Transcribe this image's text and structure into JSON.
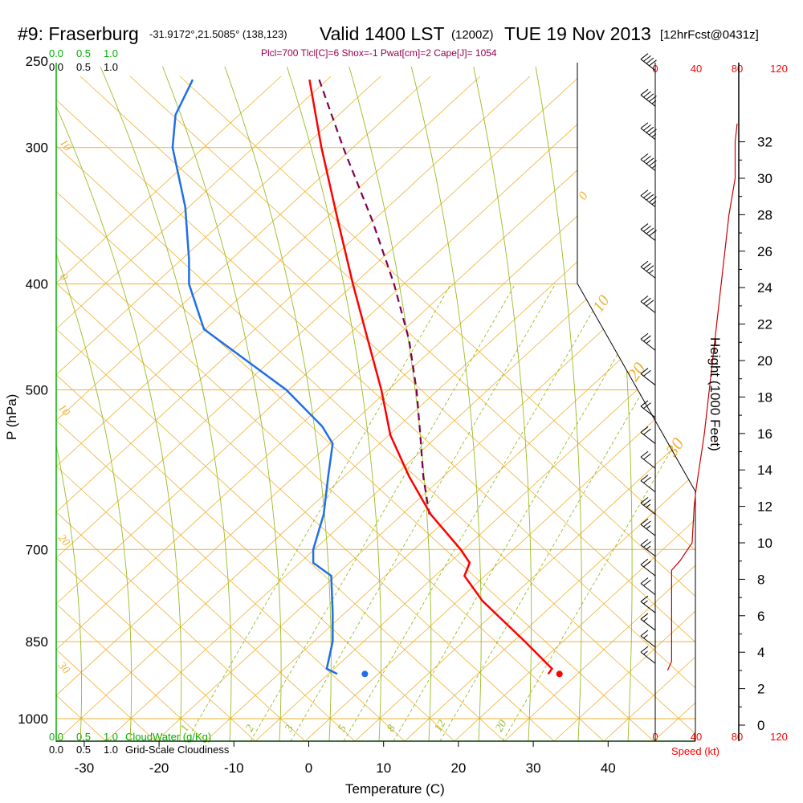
{
  "header": {
    "station": "#9: Fraserburg",
    "coords": "-31.9172°,21.5085° (138,123)",
    "valid": "Valid 1400 LST",
    "utc": "(1200Z)",
    "date": "TUE 19 Nov 2013",
    "forecast": "[12hrFcst@0431z]"
  },
  "indices_text": "Plcl=700 Tlcl[C]=6 Shox=-1 Pwat[cm]=2 Cape[J]= 1054",
  "cloud": {
    "water_ticks": [
      "0.0",
      "0.5",
      "1.0"
    ],
    "cover_ticks": [
      "0.0",
      "0.5",
      "1.0"
    ],
    "water_label": "CloudWater (g/Kg)",
    "cover_label": "Grid-Scale Cloudiness"
  },
  "speed": {
    "ticks": [
      "0",
      "40",
      "80",
      "120"
    ],
    "label": "Speed (kt)"
  },
  "colors": {
    "isobar": "#f0b030",
    "dry_adiabat": "#f0b030",
    "moist_adiabat": "#99bb22",
    "mixing_ratio": "#99bb22",
    "temperature": "#ff0000",
    "dewpoint": "#1e6fe8",
    "parcel": "#800050",
    "wind_speed": "#cc0000",
    "cloud_water": "#00b000",
    "barb": "#000000"
  },
  "chart_data": {
    "type": "skew-t log-p sounding",
    "xlabel": "Temperature (C)",
    "ylabel": "P (hPa)",
    "y2label": "Height (1000 Feet)",
    "temperature_ticks": [
      -30,
      -20,
      -10,
      0,
      10,
      20,
      30,
      40
    ],
    "pressure_ticks": [
      250,
      300,
      400,
      500,
      700,
      850,
      1000
    ],
    "height_ticks_kft": [
      0,
      2,
      4,
      6,
      8,
      10,
      12,
      14,
      16,
      18,
      20,
      22,
      24,
      26,
      28,
      30,
      32
    ],
    "pressure_range_hpa": [
      1000,
      250
    ],
    "temperature_range_c": [
      -35,
      40
    ],
    "dry_adiabat_labels": [
      "-30",
      "-20",
      "-10",
      "0",
      "10",
      "20",
      "30"
    ],
    "moist_adiabat_labels": [
      "0",
      "10",
      "20",
      "30"
    ],
    "mixing_ratio_labels": [
      "1",
      "2",
      "3",
      "5",
      "8",
      "12",
      "20"
    ],
    "temperature_profile": [
      {
        "p": 260,
        "t": 0.1
      },
      {
        "p": 300,
        "t": 1.7
      },
      {
        "p": 350,
        "t": 3.9
      },
      {
        "p": 400,
        "t": 5.9
      },
      {
        "p": 450,
        "t": 7.9
      },
      {
        "p": 500,
        "t": 9.7
      },
      {
        "p": 550,
        "t": 10.9
      },
      {
        "p": 600,
        "t": 13.4
      },
      {
        "p": 650,
        "t": 16.3
      },
      {
        "p": 700,
        "t": 20.3
      },
      {
        "p": 720,
        "t": 21.5
      },
      {
        "p": 740,
        "t": 20.8
      },
      {
        "p": 780,
        "t": 23.2
      },
      {
        "p": 850,
        "t": 28.9
      },
      {
        "p": 900,
        "t": 32.5
      },
      {
        "p": 910,
        "t": 32.0
      }
    ],
    "dewpoint_profile": [
      {
        "p": 260,
        "t": -15.5
      },
      {
        "p": 280,
        "t": -17.8
      },
      {
        "p": 300,
        "t": -18.2
      },
      {
        "p": 340,
        "t": -16.5
      },
      {
        "p": 380,
        "t": -16.0
      },
      {
        "p": 400,
        "t": -16.0
      },
      {
        "p": 440,
        "t": -14.0
      },
      {
        "p": 500,
        "t": -3.0
      },
      {
        "p": 540,
        "t": 1.8
      },
      {
        "p": 560,
        "t": 3.2
      },
      {
        "p": 600,
        "t": 2.6
      },
      {
        "p": 650,
        "t": 2.0
      },
      {
        "p": 700,
        "t": 0.6
      },
      {
        "p": 720,
        "t": 0.6
      },
      {
        "p": 740,
        "t": 3.0
      },
      {
        "p": 800,
        "t": 3.2
      },
      {
        "p": 850,
        "t": 3.2
      },
      {
        "p": 900,
        "t": 2.4
      },
      {
        "p": 910,
        "t": 3.8
      }
    ],
    "parcel_profile": [
      {
        "p": 260,
        "t": 1.4
      },
      {
        "p": 300,
        "t": 4.6
      },
      {
        "p": 350,
        "t": 8.5
      },
      {
        "p": 400,
        "t": 11.4
      },
      {
        "p": 450,
        "t": 13.4
      },
      {
        "p": 500,
        "t": 14.4
      },
      {
        "p": 550,
        "t": 14.9
      },
      {
        "p": 600,
        "t": 15.3
      },
      {
        "p": 650,
        "t": 16.1
      }
    ],
    "surface_temperature": {
      "p": 910,
      "t": 33.5
    },
    "surface_dewpoint": {
      "p": 910,
      "t": 7.5
    },
    "wind_speed_profile_kt": [
      {
        "h": 3.0,
        "v": 12
      },
      {
        "h": 3.5,
        "v": 16
      },
      {
        "h": 5.0,
        "v": 16
      },
      {
        "h": 7.0,
        "v": 16
      },
      {
        "h": 8.5,
        "v": 16
      },
      {
        "h": 9.0,
        "v": 24
      },
      {
        "h": 10.0,
        "v": 36
      },
      {
        "h": 12.0,
        "v": 38
      },
      {
        "h": 13.0,
        "v": 40
      },
      {
        "h": 16.0,
        "v": 48
      },
      {
        "h": 20.0,
        "v": 56
      },
      {
        "h": 24.0,
        "v": 64
      },
      {
        "h": 28.0,
        "v": 72
      },
      {
        "h": 30.0,
        "v": 78
      },
      {
        "h": 32.0,
        "v": 78
      },
      {
        "h": 33.0,
        "v": 80
      }
    ],
    "wind_barbs": [
      {
        "p": 255,
        "kt": 40
      },
      {
        "p": 275,
        "kt": 45
      },
      {
        "p": 295,
        "kt": 45
      },
      {
        "p": 315,
        "kt": 45
      },
      {
        "p": 340,
        "kt": 45
      },
      {
        "p": 365,
        "kt": 40
      },
      {
        "p": 395,
        "kt": 35
      },
      {
        "p": 425,
        "kt": 30
      },
      {
        "p": 460,
        "kt": 25
      },
      {
        "p": 495,
        "kt": 20
      },
      {
        "p": 530,
        "kt": 20
      },
      {
        "p": 560,
        "kt": 20
      },
      {
        "p": 590,
        "kt": 20
      },
      {
        "p": 620,
        "kt": 20
      },
      {
        "p": 650,
        "kt": 25
      },
      {
        "p": 680,
        "kt": 25
      },
      {
        "p": 710,
        "kt": 25
      },
      {
        "p": 740,
        "kt": 20
      },
      {
        "p": 770,
        "kt": 20
      },
      {
        "p": 800,
        "kt": 15
      },
      {
        "p": 830,
        "kt": 15
      },
      {
        "p": 860,
        "kt": 15
      },
      {
        "p": 890,
        "kt": 15
      }
    ]
  }
}
